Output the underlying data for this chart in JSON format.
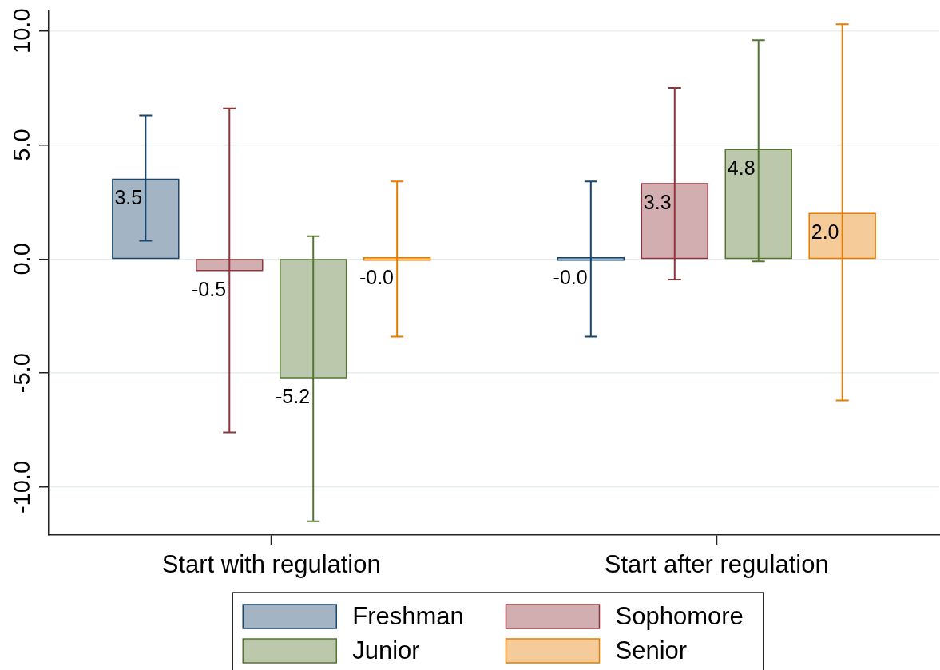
{
  "chart_data": {
    "type": "bar",
    "categories": [
      "Start with regulation",
      "Start after regulation"
    ],
    "series": [
      {
        "name": "Freshman",
        "color": "#a3b5c5",
        "values": [
          3.5,
          0
        ],
        "value_labels": [
          "3.5",
          "-0.0"
        ],
        "errors": [
          [
            0.8,
            6.3
          ],
          [
            -3.4,
            3.4
          ]
        ]
      },
      {
        "name": "Sophomore",
        "color": "#d3aeb1",
        "values": [
          -0.5,
          3.3
        ],
        "value_labels": [
          "-0.5",
          "3.3"
        ],
        "errors": [
          [
            -7.6,
            6.6
          ],
          [
            -0.9,
            7.5
          ]
        ]
      },
      {
        "name": "Junior",
        "color": "#bbc8ac",
        "values": [
          -5.2,
          4.8
        ],
        "value_labels": [
          "-5.2",
          "4.8"
        ],
        "errors": [
          [
            -11.5,
            1.0
          ],
          [
            -0.1,
            9.6
          ]
        ]
      },
      {
        "name": "Senior",
        "color": "#f4cb99",
        "values": [
          0,
          2.0
        ],
        "value_labels": [
          "-0.0",
          "2.0"
        ],
        "errors": [
          [
            -3.4,
            3.4
          ],
          [
            -6.2,
            10.3
          ]
        ]
      }
    ],
    "ylim": [
      -12.1,
      10.9
    ],
    "yticks": [
      {
        "value": -10,
        "label": "-10.0"
      },
      {
        "value": -5,
        "label": "-5.0"
      },
      {
        "value": 0,
        "label": "0.0"
      },
      {
        "value": 5,
        "label": "5.0"
      },
      {
        "value": 10,
        "label": "10.0"
      }
    ],
    "grid": "y",
    "legend": "bottom"
  }
}
